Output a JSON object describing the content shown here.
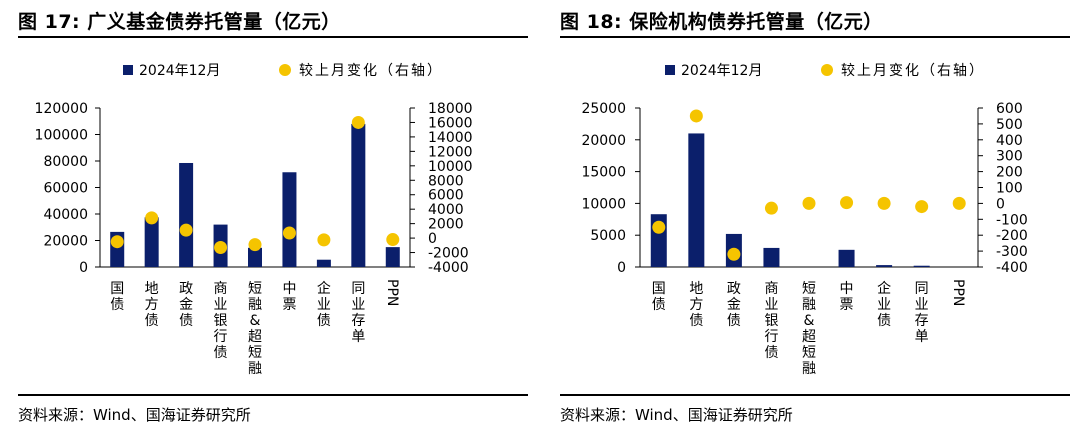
{
  "source_label": "资料来源：Wind、国海证券研究所",
  "colors": {
    "bar": "#0b1f6b",
    "dot": "#f5c400",
    "axis": "#000000"
  },
  "chart_data": [
    {
      "type": "bar",
      "title": "图 17:  广义基金债券托管量（亿元）",
      "categories": [
        "国债",
        "地方债",
        "政金债",
        "商业银行债",
        "短融&超短融",
        "中票",
        "企业债",
        "同业存单",
        "PPN"
      ],
      "series": [
        {
          "name": "2024年12月",
          "kind": "bar",
          "axis": "left",
          "values": [
            26500,
            37500,
            78500,
            32000,
            14500,
            71500,
            5500,
            108000,
            15000
          ]
        },
        {
          "name": "较上月变化（右轴）",
          "kind": "scatter",
          "axis": "right",
          "values": [
            -500,
            2800,
            1100,
            -1300,
            -900,
            700,
            -250,
            16000,
            -200
          ]
        }
      ],
      "ylim_left": [
        0,
        120000
      ],
      "yticks_left": [
        0,
        20000,
        40000,
        60000,
        80000,
        100000,
        120000
      ],
      "ylim_right": [
        -4000,
        18000
      ],
      "yticks_right": [
        -4000,
        -2000,
        0,
        2000,
        4000,
        6000,
        8000,
        10000,
        12000,
        14000,
        16000,
        18000
      ],
      "legend": "top-center",
      "grid": false
    },
    {
      "type": "bar",
      "title": "图 18:  保险机构债券托管量（亿元）",
      "categories": [
        "国债",
        "地方债",
        "政金债",
        "商业银行债",
        "短融&超短融",
        "中票",
        "企业债",
        "同业存单",
        "PPN"
      ],
      "series": [
        {
          "name": "2024年12月",
          "kind": "bar",
          "axis": "left",
          "values": [
            8300,
            21000,
            5200,
            3000,
            0,
            2700,
            300,
            200,
            0
          ]
        },
        {
          "name": "较上月变化（右轴）",
          "kind": "scatter",
          "axis": "right",
          "values": [
            -150,
            550,
            -320,
            -30,
            0,
            5,
            0,
            -20,
            0
          ]
        }
      ],
      "ylim_left": [
        0,
        25000
      ],
      "yticks_left": [
        0,
        5000,
        10000,
        15000,
        20000,
        25000
      ],
      "ylim_right": [
        -400,
        600
      ],
      "yticks_right": [
        -400,
        -300,
        -200,
        -100,
        0,
        100,
        200,
        300,
        400,
        500,
        600
      ],
      "legend": "top-center",
      "grid": false
    }
  ]
}
